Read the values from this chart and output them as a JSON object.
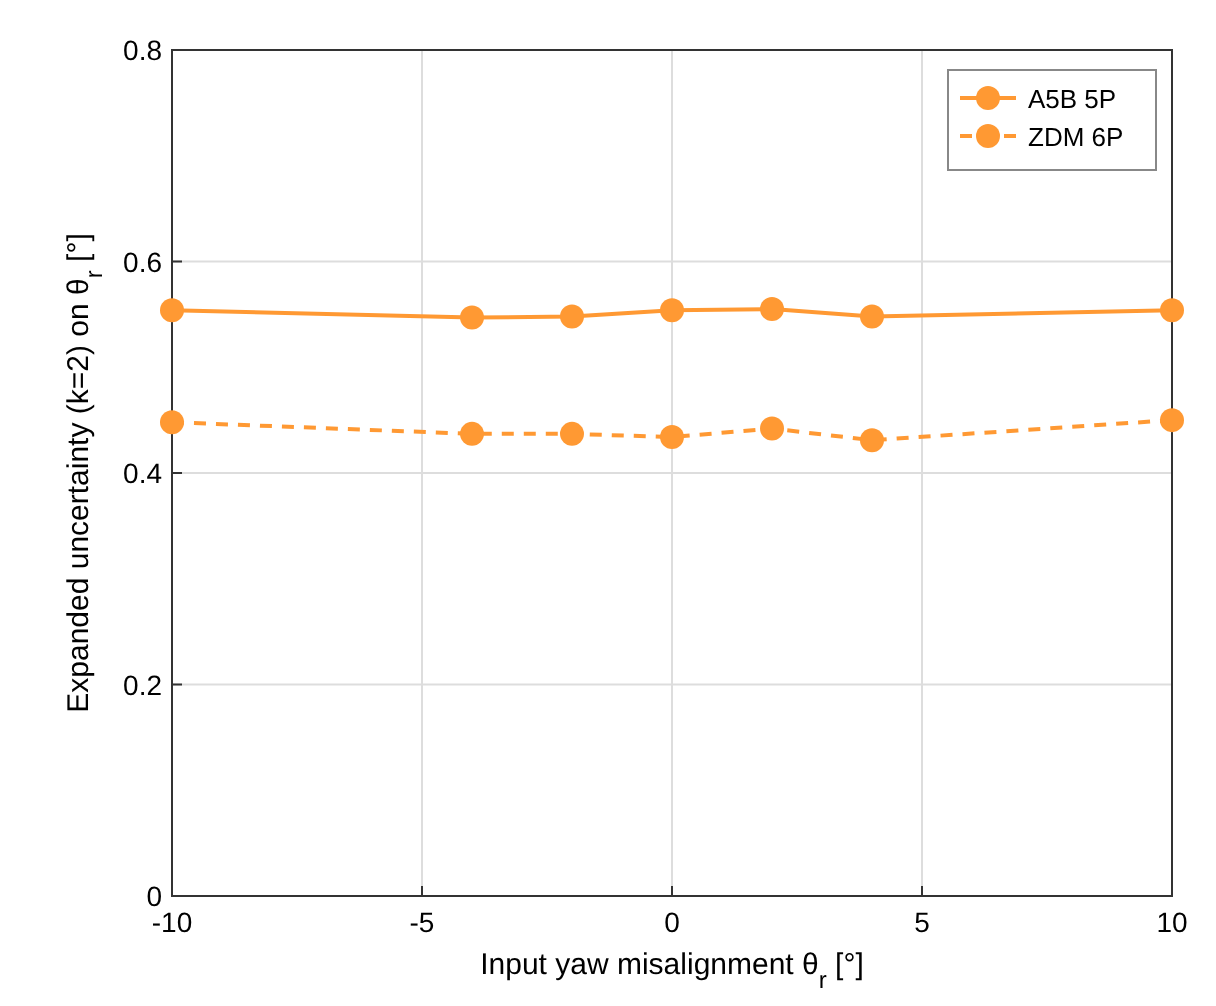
{
  "chart_data": {
    "type": "line",
    "xlabel": "Input yaw misalignment θ$_{r}$ [°]",
    "ylabel": "Expanded uncertainty (k=2) on θ$_{r}$ [°]",
    "x": [
      -10,
      -4,
      -2,
      0,
      2,
      4,
      10
    ],
    "series": [
      {
        "name": "A5B 5P",
        "color": "#ff9933",
        "line_style": "solid",
        "values": [
          0.554,
          0.547,
          0.548,
          0.554,
          0.555,
          0.548,
          0.554
        ]
      },
      {
        "name": "ZDM 6P",
        "color": "#ff9933",
        "line_style": "dashed",
        "values": [
          0.448,
          0.437,
          0.437,
          0.434,
          0.442,
          0.431,
          0.45
        ]
      }
    ],
    "xlim": [
      -10,
      10
    ],
    "xticks": [
      -10,
      -5,
      0,
      5,
      10
    ],
    "ylim": [
      0,
      0.8
    ],
    "yticks": [
      0,
      0.2,
      0.4,
      0.6,
      0.8
    ],
    "grid": true,
    "legend": "top right",
    "marker": "circle"
  }
}
